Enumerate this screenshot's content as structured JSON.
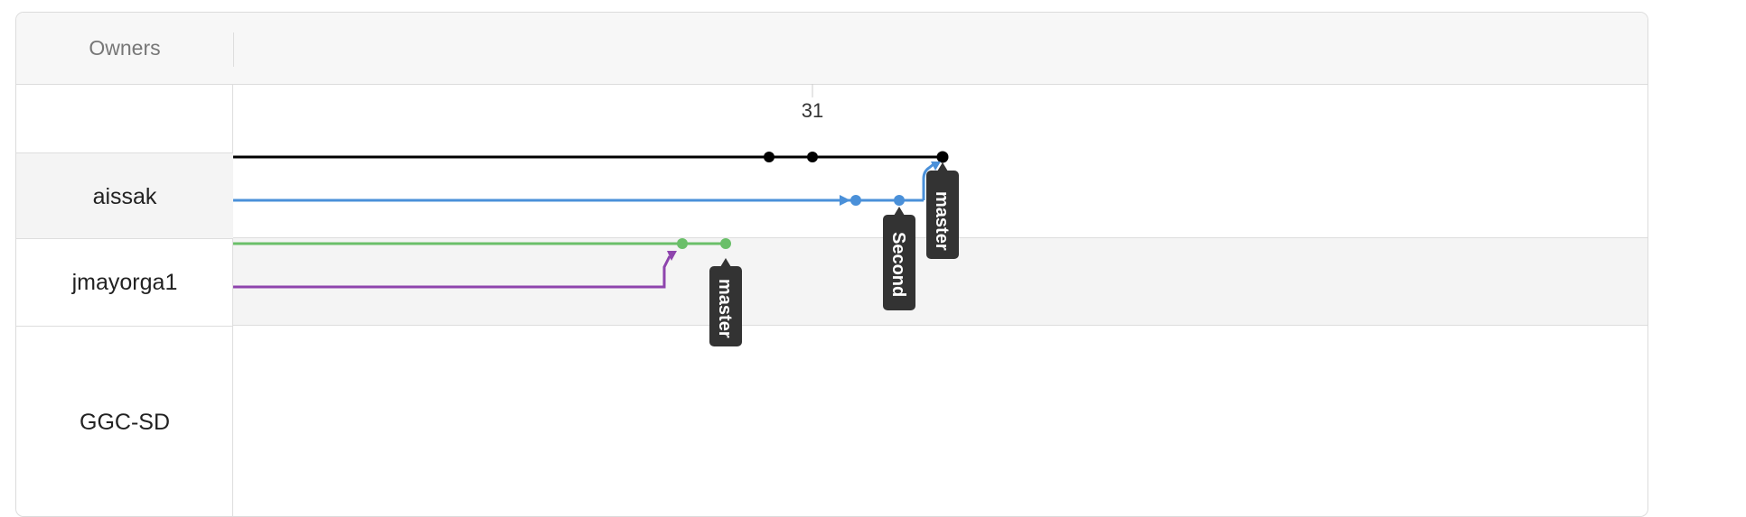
{
  "header": {
    "owners_label": "Owners"
  },
  "timeline": {
    "tick_label": "31"
  },
  "owners": [
    {
      "name": "aissak"
    },
    {
      "name": "jmayorga1"
    },
    {
      "name": "GGC-SD"
    }
  ],
  "branches": [
    {
      "owner": "aissak",
      "color": "#000000",
      "commits": 3,
      "tag": "master"
    },
    {
      "owner": "aissak",
      "color": "#4a90d9",
      "commits": 2,
      "tag": "Second"
    },
    {
      "owner": "jmayorga1",
      "color": "#6abf69",
      "commits": 2,
      "tag": "master"
    },
    {
      "owner": "jmayorga1",
      "color": "#8e44ad",
      "commits": 0,
      "tag": ""
    }
  ],
  "colors": {
    "black_branch": "#000000",
    "blue_branch": "#4a90d9",
    "green_branch": "#6abf69",
    "purple_branch": "#8e44ad",
    "tag_background": "#333333"
  }
}
